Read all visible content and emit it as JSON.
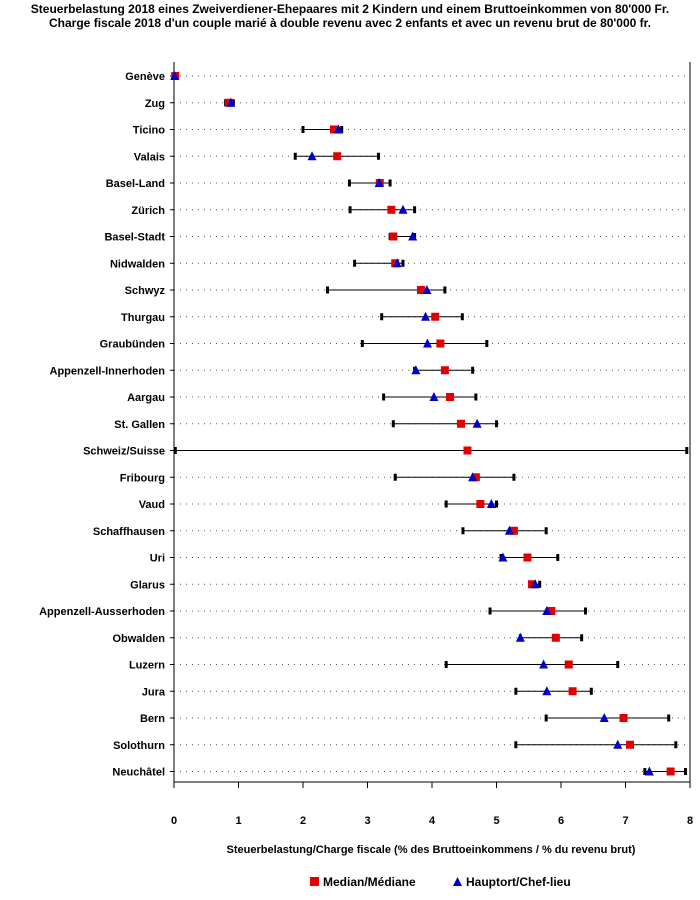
{
  "chart_data": {
    "type": "dot-range",
    "title": "Steuerbelastung 2018 eines Zweiverdiener-Ehepaares mit 2 Kindern und einem Bruttoeinkommen von 80'000 Fr.",
    "subtitle": "Charge fiscale 2018 d'un couple marié à double revenu avec 2 enfants et avec un revenu brut de 80'000 fr.",
    "xlabel": "Steuerbelastung/Charge fiscale (% des Bruttoeinkommens / % du revenu brut)",
    "xlim": [
      0,
      8
    ],
    "xticks": [
      "0",
      "1",
      "2",
      "3",
      "4",
      "5",
      "6",
      "7",
      "8"
    ],
    "legend": [
      {
        "name": "Median/Médiane",
        "marker": "square",
        "color": "#e00000"
      },
      {
        "name": "Hauptort/Chef-lieu",
        "marker": "triangle",
        "color": "#0000cc"
      }
    ],
    "rows": [
      {
        "label": "Genève",
        "min": 0.0,
        "max": 0.03,
        "median": 0.02,
        "capital": 0.01
      },
      {
        "label": "Zug",
        "min": 0.8,
        "max": 0.92,
        "median": 0.85,
        "capital": 0.88
      },
      {
        "label": "Ticino",
        "min": 2.0,
        "max": 2.6,
        "median": 2.48,
        "capital": 2.55
      },
      {
        "label": "Valais",
        "min": 1.88,
        "max": 3.17,
        "median": 2.53,
        "capital": 2.14
      },
      {
        "label": "Basel-Land",
        "min": 2.72,
        "max": 3.35,
        "median": 3.19,
        "capital": 3.18
      },
      {
        "label": "Zürich",
        "min": 2.73,
        "max": 3.73,
        "median": 3.37,
        "capital": 3.55
      },
      {
        "label": "Basel-Stadt",
        "min": 3.35,
        "max": 3.73,
        "median": 3.4,
        "capital": 3.7
      },
      {
        "label": "Nidwalden",
        "min": 2.8,
        "max": 3.55,
        "median": 3.43,
        "capital": 3.46
      },
      {
        "label": "Schwyz",
        "min": 2.38,
        "max": 4.2,
        "median": 3.83,
        "capital": 3.92
      },
      {
        "label": "Thurgau",
        "min": 3.22,
        "max": 4.47,
        "median": 4.05,
        "capital": 3.9
      },
      {
        "label": "Graubünden",
        "min": 2.92,
        "max": 4.85,
        "median": 4.13,
        "capital": 3.93
      },
      {
        "label": "Appenzell-Innerhoden",
        "min": 3.73,
        "max": 4.63,
        "median": 4.2,
        "capital": 3.75
      },
      {
        "label": "Aargau",
        "min": 3.25,
        "max": 4.68,
        "median": 4.28,
        "capital": 4.03
      },
      {
        "label": "St. Gallen",
        "min": 3.4,
        "max": 5.0,
        "median": 4.45,
        "capital": 4.7
      },
      {
        "label": "Schweiz/Suisse",
        "min": 0.02,
        "max": 7.95,
        "median": 4.55,
        "capital": null
      },
      {
        "label": "Fribourg",
        "min": 3.43,
        "max": 5.27,
        "median": 4.68,
        "capital": 4.63
      },
      {
        "label": "Vaud",
        "min": 4.22,
        "max": 5.0,
        "median": 4.75,
        "capital": 4.92
      },
      {
        "label": "Schaffhausen",
        "min": 4.48,
        "max": 5.77,
        "median": 5.27,
        "capital": 5.2
      },
      {
        "label": "Uri",
        "min": 5.07,
        "max": 5.95,
        "median": 5.48,
        "capital": 5.1
      },
      {
        "label": "Glarus",
        "min": 5.53,
        "max": 5.67,
        "median": 5.55,
        "capital": 5.6
      },
      {
        "label": "Appenzell-Ausserhoden",
        "min": 4.9,
        "max": 6.38,
        "median": 5.85,
        "capital": 5.78
      },
      {
        "label": "Obwalden",
        "min": 5.37,
        "max": 6.32,
        "median": 5.92,
        "capital": 5.37
      },
      {
        "label": "Luzern",
        "min": 4.22,
        "max": 6.88,
        "median": 6.12,
        "capital": 5.73
      },
      {
        "label": "Jura",
        "min": 5.3,
        "max": 6.47,
        "median": 6.18,
        "capital": 5.78
      },
      {
        "label": "Bern",
        "min": 5.77,
        "max": 7.67,
        "median": 6.97,
        "capital": 6.67
      },
      {
        "label": "Solothurn",
        "min": 5.3,
        "max": 7.78,
        "median": 7.07,
        "capital": 6.88
      },
      {
        "label": "Neuchâtel",
        "min": 7.3,
        "max": 7.93,
        "median": 7.7,
        "capital": 7.37
      }
    ]
  }
}
